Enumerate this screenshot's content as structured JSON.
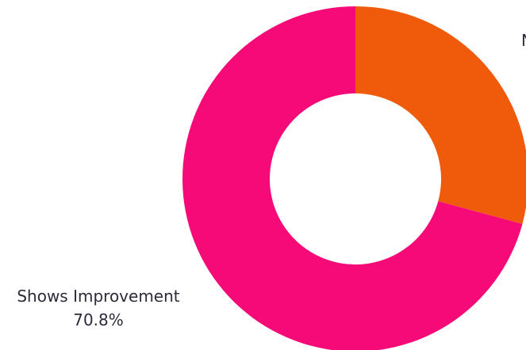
{
  "chart_data": {
    "type": "pie",
    "variant": "donut",
    "slices": [
      {
        "label": "Shows Improvement",
        "value": 70.8,
        "value_label": "70.8%",
        "color": "#f50a78"
      },
      {
        "label": "N",
        "value": 29.2,
        "color": "#ef5a0b"
      }
    ],
    "legend": "none"
  }
}
